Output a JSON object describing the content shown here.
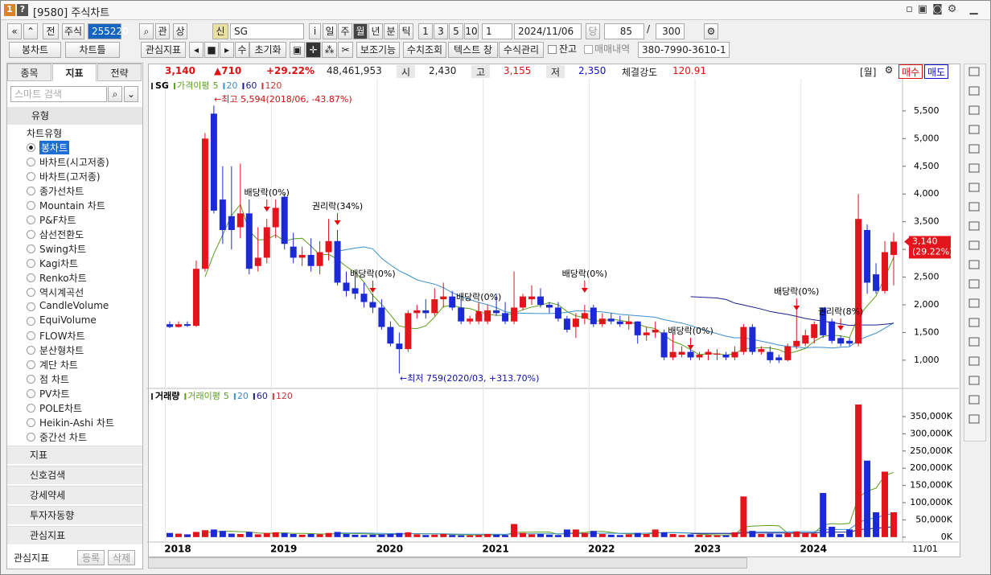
{
  "window": {
    "badge": "1",
    "help": "?",
    "title": "[9580] 주식차트"
  },
  "toolbar": {
    "row1": [
      "전",
      "주식",
      "255220",
      "관",
      "상",
      "신",
      "SG",
      "i",
      "일",
      "주",
      "월",
      "년",
      "분",
      "틱",
      "1",
      "3",
      "5",
      "10",
      "1",
      "2024/11/06",
      "당",
      "85",
      "/",
      "300"
    ],
    "row2": [
      "봉차트",
      "차트틀",
      "관심지표",
      "수",
      "초기화",
      "보조기능",
      "수치조회",
      "텍스트 창",
      "수식관리",
      "잔고",
      "매매내역",
      "380-7990-3610-1"
    ]
  },
  "quote": {
    "price": "3,140",
    "change": "▲710",
    "rate": "+29.22%",
    "volume": "48,461,953",
    "open_label": "시",
    "open": "2,430",
    "high_label": "고",
    "high": "3,155",
    "low_label": "저",
    "low": "2,350",
    "strength_label": "체결강도",
    "strength": "120.91",
    "period": "[월]",
    "buy": "매수",
    "sell": "매도"
  },
  "left_panel": {
    "tabs": [
      "종목",
      "지표",
      "전략"
    ],
    "search": "스마트 검색",
    "group": "유형",
    "subgroup": "차트유형",
    "items": [
      "봉차트",
      "바차트(시고저종)",
      "바차트(고저종)",
      "종가선차트",
      "Mountain 차트",
      "P&F차트",
      "삼선전환도",
      "Swing차트",
      "Kagi차트",
      "Renko차트",
      "역시계곡선",
      "CandleVolume",
      "EquiVolume",
      "FLOW차트",
      "분산형차트",
      "계단 차트",
      "점 차트",
      "PV차트",
      "POLE차트",
      "Heikin-Ashi 차트",
      "중간선 차트"
    ],
    "sections": [
      "지표",
      "신호검색",
      "강세약세",
      "투자자동향",
      "관심지표"
    ],
    "footer": {
      "label": "관심지표",
      "register": "등록",
      "delete": "삭제"
    }
  },
  "chart_data": {
    "type": "candlestick",
    "name": "SG",
    "up_color": "#e3141c",
    "down_color": "#1c2ad6",
    "categories": [
      "2018",
      null,
      null,
      null,
      null,
      null,
      null,
      null,
      null,
      null,
      null,
      null,
      "2019",
      null,
      null,
      null,
      null,
      null,
      null,
      null,
      null,
      null,
      null,
      null,
      "2020",
      null,
      null,
      null,
      null,
      null,
      null,
      null,
      null,
      null,
      null,
      null,
      "2021",
      null,
      null,
      null,
      null,
      null,
      null,
      null,
      null,
      null,
      null,
      null,
      "2022",
      null,
      null,
      null,
      null,
      null,
      null,
      null,
      null,
      null,
      null,
      null,
      "2023",
      null,
      null,
      null,
      null,
      null,
      null,
      null,
      null,
      null,
      null,
      null,
      "2024",
      null,
      null,
      null,
      null,
      null,
      null,
      null,
      null,
      null,
      null
    ],
    "last_category": "11/01",
    "open": [
      1650,
      1600,
      1650,
      1620,
      2650,
      5450,
      3900,
      3600,
      3400,
      3650,
      2700,
      2850,
      3400,
      3950,
      3050,
      2850,
      2900,
      2700,
      2950,
      3150,
      2400,
      2300,
      2200,
      2050,
      1950,
      1600,
      1300,
      1200,
      1850,
      1900,
      1850,
      2100,
      2150,
      1950,
      1700,
      1700,
      1700,
      1900,
      1850,
      1700,
      1950,
      2100,
      2150,
      2000,
      1950,
      1750,
      1600,
      1750,
      1950,
      1650,
      1750,
      1700,
      1650,
      1700,
      1450,
      1500,
      1500,
      1050,
      1100,
      1150,
      1050,
      1100,
      1100,
      1100,
      1050,
      1150,
      1600,
      1150,
      1150,
      1050,
      1000,
      1250,
      1300,
      1400,
      1950,
      1700,
      1400,
      1350,
      1300,
      3350,
      2550,
      2250,
      2900
    ],
    "high": [
      1700,
      1700,
      1700,
      2800,
      5100,
      5594,
      4500,
      4500,
      4550,
      3900,
      3400,
      3550,
      3900,
      4000,
      3300,
      3050,
      3200,
      3150,
      3550,
      3350,
      2600,
      2500,
      2400,
      2200,
      2100,
      1700,
      1500,
      1900,
      2000,
      2100,
      2300,
      2400,
      2250,
      2100,
      1800,
      2050,
      2000,
      2200,
      2050,
      2600,
      2200,
      2350,
      2300,
      2050,
      2050,
      1800,
      1850,
      2000,
      2000,
      1850,
      1850,
      1800,
      1800,
      1700,
      1600,
      1700,
      1550,
      1500,
      1250,
      1250,
      1150,
      1200,
      1200,
      1150,
      1250,
      1650,
      1650,
      1250,
      1250,
      1100,
      1300,
      1900,
      1550,
      1700,
      1950,
      1750,
      1450,
      1400,
      4000,
      3450,
      2750,
      3150,
      3300
    ],
    "low": [
      1580,
      1590,
      1600,
      1600,
      2600,
      3650,
      3100,
      3000,
      3200,
      2550,
      2600,
      2750,
      3200,
      3000,
      2750,
      2700,
      2600,
      2550,
      2800,
      2350,
      2150,
      2100,
      1950,
      1850,
      1550,
      1250,
      759,
      1150,
      1750,
      1750,
      1800,
      1950,
      1900,
      1650,
      1650,
      1650,
      1650,
      1800,
      1650,
      1650,
      1900,
      2000,
      1950,
      1850,
      1700,
      1500,
      1400,
      1650,
      1600,
      1600,
      1650,
      1600,
      1550,
      1300,
      1350,
      1400,
      1000,
      1000,
      1050,
      1000,
      1000,
      1000,
      1000,
      1000,
      1000,
      1100,
      1100,
      1100,
      950,
      950,
      980,
      1200,
      1250,
      1300,
      1400,
      1300,
      1250,
      1250,
      1250,
      2200,
      2200,
      2200,
      2350
    ],
    "close": [
      1600,
      1650,
      1620,
      2650,
      5000,
      3700,
      3350,
      3350,
      3650,
      2650,
      2850,
      3400,
      3750,
      3100,
      2850,
      2900,
      2700,
      2950,
      3150,
      2400,
      2250,
      2200,
      2050,
      1950,
      1600,
      1300,
      1200,
      1850,
      1900,
      1850,
      2100,
      2150,
      1950,
      1700,
      1750,
      1850,
      1900,
      1850,
      1700,
      1950,
      2150,
      2150,
      2000,
      1950,
      1750,
      1550,
      1750,
      1850,
      1650,
      1750,
      1700,
      1650,
      1700,
      1450,
      1500,
      1550,
      1050,
      1150,
      1150,
      1050,
      1100,
      1150,
      1120,
      1050,
      1150,
      1600,
      1150,
      1200,
      1000,
      1000,
      1250,
      1350,
      1450,
      1650,
      1450,
      1350,
      1300,
      1300,
      3550,
      2400,
      2250,
      2950,
      3140
    ],
    "ylim": [
      505,
      6050
    ],
    "yticks": [
      {
        "value": 1000,
        "label": "1,000"
      },
      {
        "value": 1500,
        "label": "1,500"
      },
      {
        "value": 2000,
        "label": "2,000"
      },
      {
        "value": 2500,
        "label": "2,500"
      },
      {
        "value": 3000,
        "label": "3,000"
      },
      {
        "value": 3500,
        "label": "3,500"
      },
      {
        "value": 4000,
        "label": "4,000"
      },
      {
        "value": 4500,
        "label": "4,500"
      },
      {
        "value": 5000,
        "label": "5,000"
      },
      {
        "value": 5500,
        "label": "5,500"
      }
    ],
    "last_rate": "(29.22%)",
    "ma": {
      "name": "가격이평",
      "periods": [
        5,
        20,
        60,
        120
      ],
      "colors": [
        "#5a9e1c",
        "#3a8fcf",
        "#1d1d8c",
        "#c43a3a"
      ]
    },
    "high_note": "←최고 5,594(2018/06, -43.87%)",
    "low_note": "←최저 759(2020/03, +313.70%)",
    "events": [
      "배당락(0%)",
      "권리락(34%)",
      "배당락(0%)",
      "배당락(0%)",
      "배당락(0%)",
      "배당락(0%)",
      "배당락(0%)",
      "권리락(8%)"
    ],
    "volume": {
      "name": "거래량",
      "values": [
        12000,
        10000,
        8000,
        15000,
        20000,
        22000,
        18000,
        10000,
        9000,
        15000,
        8000,
        12000,
        14000,
        12000,
        9000,
        7000,
        9000,
        8000,
        12000,
        15000,
        9000,
        7000,
        6000,
        7000,
        8000,
        9000,
        12000,
        14000,
        8000,
        6000,
        7000,
        9000,
        6000,
        5000,
        5000,
        6000,
        9000,
        7000,
        6000,
        38000,
        12000,
        8000,
        9000,
        7000,
        6000,
        22000,
        22000,
        12000,
        18000,
        9000,
        7000,
        6000,
        8000,
        12000,
        9000,
        22000,
        14000,
        9000,
        6000,
        8000,
        7000,
        6000,
        5000,
        5000,
        14000,
        118000,
        18000,
        9000,
        10000,
        8000,
        12000,
        16000,
        12000,
        10000,
        128000,
        30000,
        9000,
        22000,
        385000,
        222000,
        72000,
        190000,
        72000
      ],
      "ylim": [
        -12000,
        427000
      ],
      "yticks": [
        {
          "value": 0,
          "label": "0K"
        },
        {
          "value": 50000,
          "label": "50,000K"
        },
        {
          "value": 100000,
          "label": "100,000K"
        },
        {
          "value": 150000,
          "label": "150,000K"
        },
        {
          "value": 200000,
          "label": "200,000K"
        },
        {
          "value": 250000,
          "label": "250,000K"
        },
        {
          "value": 300000,
          "label": "300,000K"
        },
        {
          "value": 350000,
          "label": "350,000K"
        }
      ],
      "ma": {
        "name": "거래이평",
        "periods": [
          5,
          20,
          60,
          120
        ]
      }
    }
  }
}
